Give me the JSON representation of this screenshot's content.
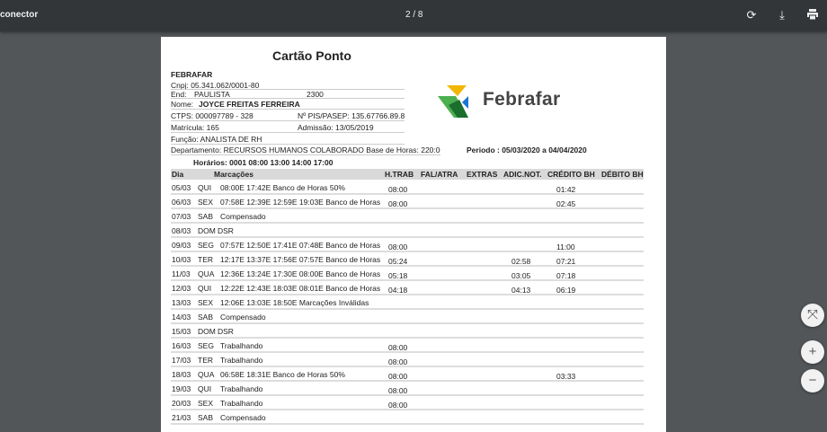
{
  "toolbar": {
    "title": "conector",
    "page_indicator": "2 / 8",
    "rotate_icon": "rotate-icon",
    "download_icon": "download-icon",
    "print_icon": "print-icon"
  },
  "document": {
    "title": "Cartão Ponto",
    "company": "FEBRAFAR",
    "cnpj": "Cnpj:  05.341.062/0001-80",
    "end_label": "End:",
    "end_value": "PAULISTA",
    "end_number": "2300",
    "nome_label": "Nome:",
    "nome_value": "JOYCE FREITAS FERREIRA",
    "ctps": "CTPS:   000097789  -   328",
    "pis": "Nº PIS/PASEP: 135.67766.89.8",
    "matricula": "Matrícula:     165",
    "admissao": "Admissão:  13/05/2019",
    "funcao": "Função: ANALISTA DE RH",
    "departamento": "Departamento: RECURSOS HUMANOS COLABORADO  Base de Horas: 220:00",
    "periodo": "Periodo : 05/03/2020   a  04/04/2020",
    "horarios": "Horários: 0001    08:00 13:00 14:00 17:00",
    "logo_text": "Febrafar",
    "columns": [
      "Dia",
      "Marcações",
      "H.TRAB",
      "FAL/ATRA",
      "EXTRAS",
      "ADIC.NOT.",
      "CRÉDITO BH",
      "DÉBITO BH"
    ],
    "rows": [
      {
        "dia": "05/03",
        "dow": "QUI",
        "marc": "08:00E 17:42E  Banco de Horas 50%",
        "htrab": "08:00",
        "adic": "",
        "credito": "01:42"
      },
      {
        "dia": "06/03",
        "dow": "SEX",
        "marc": "07:58E 12:39E 12:59E 19:03E  Banco de Horas",
        "htrab": "08:00",
        "adic": "",
        "credito": "02:45"
      },
      {
        "dia": "07/03",
        "dow": "SAB",
        "marc": "Compensado",
        "htrab": "",
        "adic": "",
        "credito": ""
      },
      {
        "dia": "08/03",
        "dow": "DOM",
        "marc": "DSR",
        "htrab": "",
        "adic": "",
        "credito": ""
      },
      {
        "dia": "09/03",
        "dow": "SEG",
        "marc": "07:57E 12:50E 17:41E 07:48E  Banco de Horas",
        "htrab": "08:00",
        "adic": "",
        "credito": "11:00"
      },
      {
        "dia": "10/03",
        "dow": "TER",
        "marc": "12:17E 13:37E 17:56E 07:57E  Banco de Horas",
        "htrab": "05:24",
        "adic": "02:58",
        "credito": "07:21"
      },
      {
        "dia": "11/03",
        "dow": "QUA",
        "marc": "12:36E 13:24E 17:30E 08:00E  Banco de Horas",
        "htrab": "05:18",
        "adic": "03:05",
        "credito": "07:18"
      },
      {
        "dia": "12/03",
        "dow": "QUI",
        "marc": "12:22E 12:43E 18:03E 08:01E  Banco de Horas",
        "htrab": "04:18",
        "adic": "04:13",
        "credito": "06:19"
      },
      {
        "dia": "13/03",
        "dow": "SEX",
        "marc": "12:06E 13:03E 18:50E  Marcações Inválidas",
        "htrab": "",
        "adic": "",
        "credito": ""
      },
      {
        "dia": "14/03",
        "dow": "SAB",
        "marc": "Compensado",
        "htrab": "",
        "adic": "",
        "credito": ""
      },
      {
        "dia": "15/03",
        "dow": "DOM",
        "marc": "DSR",
        "htrab": "",
        "adic": "",
        "credito": ""
      },
      {
        "dia": "16/03",
        "dow": "SEG",
        "marc": "Trabalhando",
        "htrab": "08:00",
        "adic": "",
        "credito": ""
      },
      {
        "dia": "17/03",
        "dow": "TER",
        "marc": "Trabalhando",
        "htrab": "08:00",
        "adic": "",
        "credito": ""
      },
      {
        "dia": "18/03",
        "dow": "QUA",
        "marc": "06:58E 18:31E  Banco de Horas 50%",
        "htrab": "08:00",
        "adic": "",
        "credito": "03:33"
      },
      {
        "dia": "19/03",
        "dow": "QUI",
        "marc": "Trabalhando",
        "htrab": "08:00",
        "adic": "",
        "credito": ""
      },
      {
        "dia": "20/03",
        "dow": "SEX",
        "marc": "Trabalhando",
        "htrab": "08:00",
        "adic": "",
        "credito": ""
      },
      {
        "dia": "21/03",
        "dow": "SAB",
        "marc": "Compensado",
        "htrab": "",
        "adic": "",
        "credito": ""
      }
    ]
  },
  "controls": {
    "fit_icon": "fit-to-page-icon",
    "zoom_in_icon": "zoom-in-icon",
    "zoom_out_icon": "zoom-out-icon"
  }
}
